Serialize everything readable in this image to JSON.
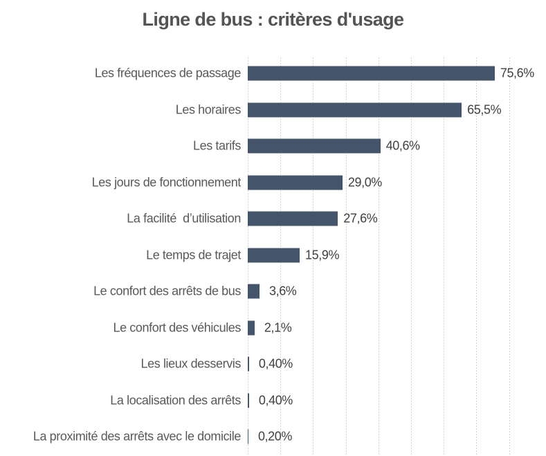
{
  "chart_data": {
    "type": "bar",
    "orientation": "horizontal",
    "title": "Ligne de bus : critères d'usage",
    "categories": [
      "Les fréquences de passage",
      "Les horaires",
      "Les tarifs",
      "Les jours de fonctionnement",
      "La facilité  d’utilisation",
      "Le temps de trajet",
      "Le confort des arrêts de bus",
      "Le confort des véhicules",
      "Les lieux desservis",
      "La localisation des arrêts",
      "La proximité des arrêts avec le domicile"
    ],
    "values": [
      75.6,
      65.5,
      40.6,
      29.0,
      27.6,
      15.9,
      3.6,
      2.1,
      0.4,
      0.4,
      0.2
    ],
    "value_labels": [
      "75,6%",
      "65,5%",
      "40,6%",
      "29,0%",
      "27,6%",
      "15,9%",
      "3,6%",
      "2,1%",
      "0,40%",
      "0,40%",
      "0,20%"
    ],
    "xlabel": "",
    "ylabel": "",
    "xlim": [
      0,
      80
    ],
    "gridline_step": 10,
    "grid": "vertical-dashed",
    "legend": "none",
    "colors": {
      "bar": "#44546A",
      "gridline": "#D4D4D4",
      "title": "#545454",
      "category_label": "#595959",
      "value_label": "#404040"
    }
  }
}
